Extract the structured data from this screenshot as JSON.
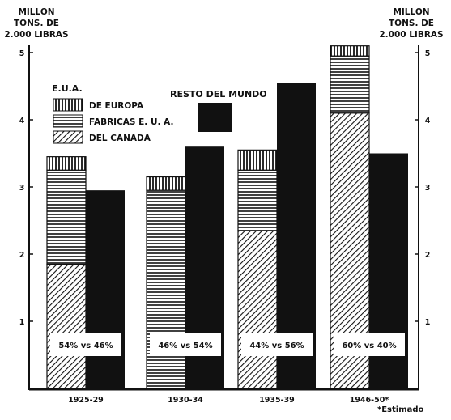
{
  "chart_data": {
    "type": "bar",
    "title": "",
    "ylabel_left": [
      "MILLON",
      "TONS. DE",
      "2.000 LIBRAS"
    ],
    "ylabel_right": [
      "MILLON",
      "TONS. DE",
      "2.000 LIBRAS"
    ],
    "ylim": [
      0,
      5.2
    ],
    "yticks": [
      "1",
      "2",
      "3",
      "4",
      "5"
    ],
    "categories": [
      "1925-29",
      "1930-34",
      "1935-39",
      "1946-50*"
    ],
    "footnote": "*Estimado",
    "legend_group_title": "E.U.A.",
    "legend_other_title": "RESTO DEL MUNDO",
    "stacked_series": [
      {
        "name": "DEL CANADA",
        "pattern": "diagonal",
        "values": [
          1.85,
          0,
          2.35,
          4.1
        ]
      },
      {
        "name": "FABRICAS E. U. A.",
        "pattern": "horizontal",
        "values": [
          1.4,
          2.95,
          0.9,
          0.85
        ]
      },
      {
        "name": "DE EUROPA",
        "pattern": "vertical",
        "values": [
          0.2,
          0.2,
          0.3,
          0.15
        ]
      }
    ],
    "other_series": {
      "name": "RESTO DEL MUNDO",
      "values": [
        2.95,
        3.6,
        4.55,
        3.5
      ]
    },
    "share_labels": [
      "54% vs 46%",
      "46% vs 54%",
      "44% vs 56%",
      "60% vs 40%"
    ],
    "grid": false
  }
}
